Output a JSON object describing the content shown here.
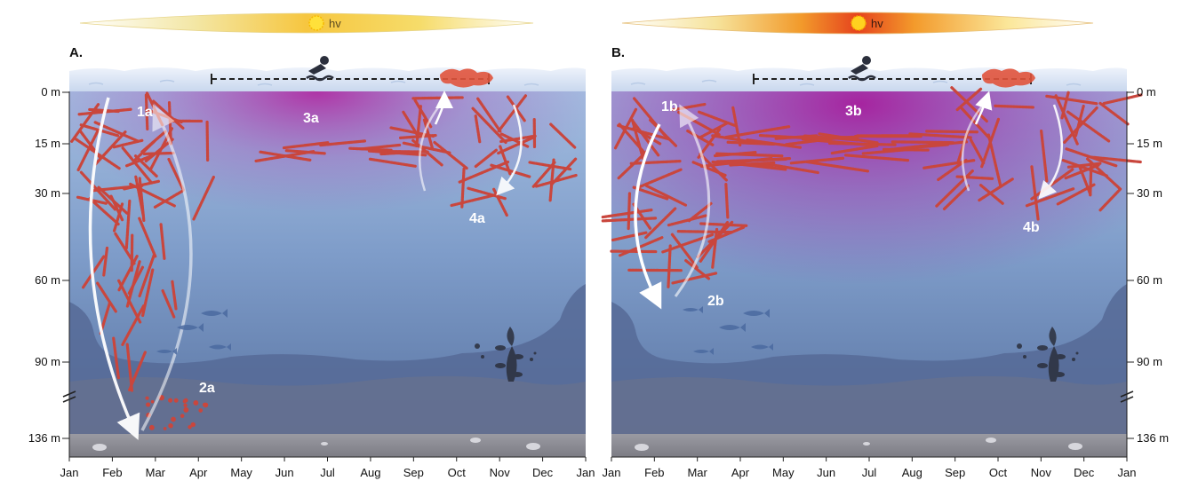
{
  "panels": [
    {
      "id": "a",
      "letter": "A.",
      "light_label": "hv",
      "markers": [
        "1a",
        "2a",
        "3a",
        "4a"
      ],
      "light_gradient": [
        "#ffffff",
        "#f5e9a8",
        "#f7c84a",
        "#f7d95c",
        "#fbf3c2",
        "#ffffff"
      ],
      "surface_tint": "#b0249f"
    },
    {
      "id": "b",
      "letter": "B.",
      "light_label": "hv",
      "markers": [
        "1b",
        "2b",
        "3b",
        "4b"
      ],
      "light_gradient": [
        "#ffffff",
        "#f5e39a",
        "#f39a2a",
        "#e8461e",
        "#f59c2c",
        "#fbe89a",
        "#ffffff"
      ],
      "surface_tint": "#a61c9c"
    }
  ],
  "depth_labels_left": [
    "0 m",
    "15 m",
    "30 m",
    "60 m",
    "90 m",
    "136 m"
  ],
  "depth_labels_right": [
    "0 m",
    "15 m",
    "30 m",
    "60 m",
    "90 m",
    "136 m"
  ],
  "months_a": [
    "Jan",
    "Feb",
    "Mar",
    "Apr",
    "May",
    "Jun",
    "Jul",
    "Aug",
    "Sep",
    "Oct",
    "Nov",
    "Dec",
    "Jan"
  ],
  "months_b": [
    "Jan",
    "Feb",
    "Mar",
    "Apr",
    "May",
    "Jun",
    "Jul",
    "Aug",
    "Sep",
    "Oct",
    "Nov",
    "Dec",
    "Jan"
  ],
  "colors": {
    "water_top": "#a7c0e2",
    "water_deep": "#5a78a6",
    "seafloor": "#8b8b93",
    "filament": "#d4574a",
    "ridge": "#4c5f88",
    "text_white": "#ffffff",
    "icon_dark": "#2b2f3c"
  },
  "icons": [
    "sun-icon",
    "swimmer-icon",
    "seaweed-icon",
    "fish-icon",
    "axis-break-icon"
  ]
}
